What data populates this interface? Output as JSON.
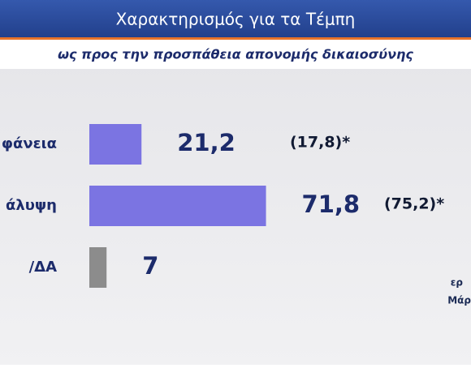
{
  "chart_data": {
    "type": "bar",
    "title": "Χαρακτηρισμός για τα Τέμπη",
    "subtitle": "ως προς την προσπάθεια απονομής δικαιοσύνης",
    "categories": [
      "φάνεια",
      "άλυψη",
      "/ΔΑ"
    ],
    "values": [
      21.2,
      71.8,
      7
    ],
    "value_labels": [
      "21,2",
      "71,8",
      "7"
    ],
    "colors": [
      "#7b74e2",
      "#7b74e2",
      "#8c8c8c"
    ],
    "previous_values": [
      17.8,
      75.2,
      null
    ],
    "previous_value_labels": [
      "(17,8)*",
      "(75,2)*",
      null
    ],
    "footnotes": [
      "ερ",
      "Μάρ"
    ]
  }
}
